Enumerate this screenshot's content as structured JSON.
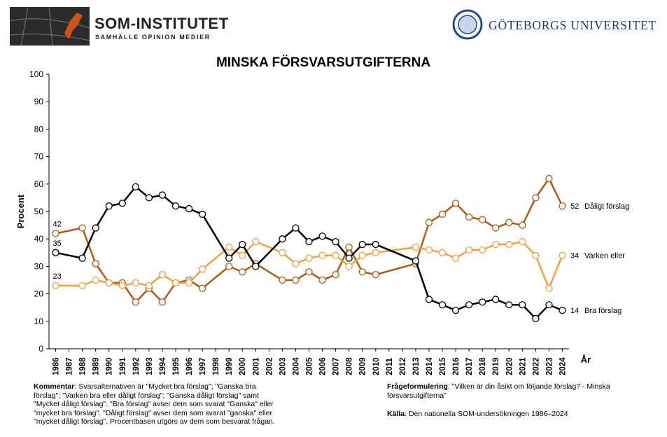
{
  "header": {
    "brand": "SOM-INSTITUTET",
    "tagline": "SAMHÄLLE OPINION MEDIER",
    "university": "GÖTEBORGS UNIVERSITET"
  },
  "chart_data": {
    "type": "line",
    "title": "MINSKA FÖRSVARSUTGIFTERNA",
    "y_label": "Procent",
    "x_label": "År",
    "x": [
      1986,
      1988,
      1989,
      1990,
      1991,
      1992,
      1993,
      1994,
      1995,
      1996,
      1997,
      1999,
      2000,
      2001,
      2003,
      2004,
      2005,
      2006,
      2007,
      2008,
      2009,
      2010,
      2013,
      2014,
      2015,
      2016,
      2017,
      2018,
      2019,
      2020,
      2021,
      2022,
      2023,
      2024
    ],
    "series": [
      {
        "name": "Dåligt förslag",
        "color": "#b35a12",
        "values": [
          42,
          44,
          31,
          24,
          24,
          17,
          22,
          17,
          24,
          25,
          22,
          30,
          28,
          31,
          25,
          25,
          28,
          25,
          27,
          37,
          28,
          27,
          31,
          46,
          49,
          53,
          48,
          47,
          44,
          46,
          45,
          55,
          62,
          52
        ]
      },
      {
        "name": "Varken eller",
        "color": "#f2a140",
        "values": [
          23,
          23,
          25,
          24,
          23,
          24,
          23,
          27,
          24,
          24,
          29,
          37,
          34,
          39,
          35,
          31,
          33,
          34,
          34,
          30,
          34,
          35,
          37,
          36,
          35,
          33,
          36,
          36,
          38,
          38,
          39,
          34,
          22,
          34
        ]
      },
      {
        "name": "Bra förslag",
        "color": "#000000",
        "values": [
          35,
          33,
          44,
          52,
          53,
          59,
          55,
          56,
          52,
          51,
          49,
          33,
          38,
          30,
          40,
          44,
          39,
          41,
          39,
          33,
          38,
          38,
          32,
          18,
          16,
          14,
          16,
          17,
          18,
          16,
          16,
          11,
          16,
          14
        ]
      }
    ],
    "xlim": [
      1985.5,
      2024.5
    ],
    "xticks": [
      1986,
      1987,
      1988,
      1989,
      1990,
      1991,
      1992,
      1993,
      1994,
      1995,
      1996,
      1997,
      1998,
      1999,
      2000,
      2001,
      2002,
      2003,
      2004,
      2005,
      2006,
      2007,
      2008,
      2009,
      2010,
      2011,
      2012,
      2013,
      2014,
      2015,
      2016,
      2017,
      2018,
      2019,
      2020,
      2021,
      2022,
      2023,
      2024
    ],
    "ylim": [
      0,
      100
    ],
    "yticks": [
      0,
      10,
      20,
      30,
      40,
      50,
      60,
      70,
      80,
      90,
      100
    ],
    "grid": false
  },
  "notes": {
    "comment_label": "Kommentar",
    "comment": ": Svarsalternativen är \"Mycket bra förslag\"; \"Ganska bra förslag\"; \"Varken bra eller dåligt förslag\"; \"Ganska dåligt förslag\" samt \"Mycket dåligt förslag\".  \"Bra förslag\" avser dem som svarat \"Ganska\" eller \"mycket bra förslag\". \"Dåligt förslag\" avser dem som svarat \"ganska\" eller \"mycket dåligt förslag\". Procentbasen utgörs av dem som besvarat frågan.",
    "question_label": "Frågeformulering",
    "question": ": \"Vilken är din åsikt om följande förslag? - Minska försvarsutgifterna\"",
    "source_label": "Källa",
    "source": ": Den nationella SOM-undersökningen 1986–2024"
  }
}
